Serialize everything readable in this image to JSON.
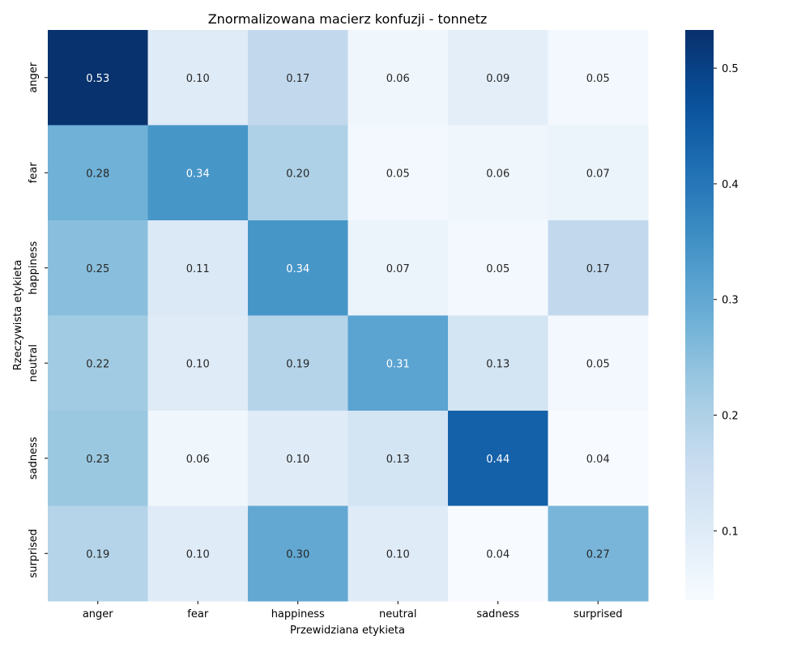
{
  "chart_data": {
    "type": "heatmap",
    "title": "Znormalizowana macierz konfuzji - tonnetz",
    "xlabel": "Przewidziana etykieta",
    "ylabel": "Rzeczywista etykieta",
    "x_categories": [
      "anger",
      "fear",
      "happiness",
      "neutral",
      "sadness",
      "surprised"
    ],
    "y_categories": [
      "anger",
      "fear",
      "happiness",
      "neutral",
      "sadness",
      "surprised"
    ],
    "values": [
      [
        0.53,
        0.1,
        0.17,
        0.06,
        0.09,
        0.05
      ],
      [
        0.28,
        0.34,
        0.2,
        0.05,
        0.06,
        0.07
      ],
      [
        0.25,
        0.11,
        0.34,
        0.07,
        0.05,
        0.17
      ],
      [
        0.22,
        0.1,
        0.19,
        0.31,
        0.13,
        0.05
      ],
      [
        0.23,
        0.06,
        0.1,
        0.13,
        0.44,
        0.04
      ],
      [
        0.19,
        0.1,
        0.3,
        0.1,
        0.04,
        0.27
      ]
    ],
    "value_format": "0.00",
    "colorbar": {
      "colormap": "Blues",
      "range": [
        0.04,
        0.533
      ],
      "ticks": [
        0.1,
        0.2,
        0.3,
        0.4,
        0.5
      ],
      "tick_labels": [
        "0.1",
        "0.2",
        "0.3",
        "0.4",
        "0.5"
      ]
    },
    "grid": false,
    "legend": "none"
  }
}
